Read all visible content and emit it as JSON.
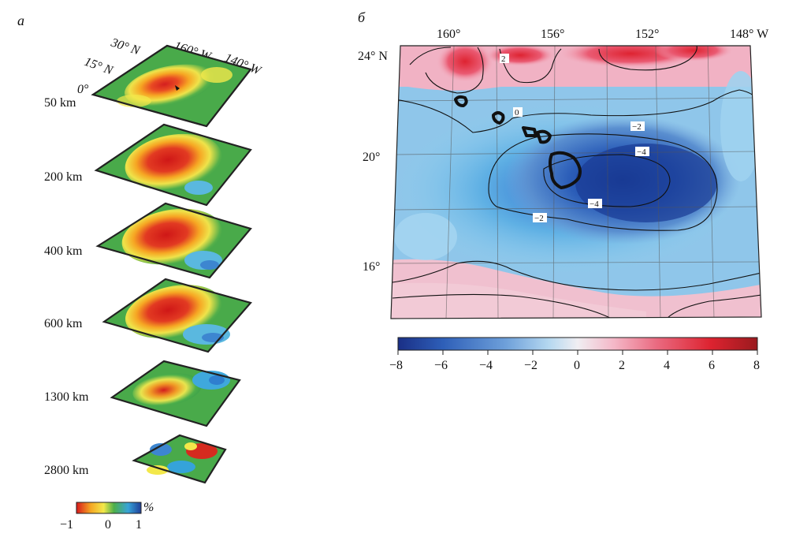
{
  "panel_a": {
    "letter": "а",
    "lon_labels": [
      "160° W",
      "140° W"
    ],
    "lat_labels": [
      "30° N",
      "15° N",
      "0°"
    ],
    "slices": [
      {
        "depth": "50 km"
      },
      {
        "depth": "200 km"
      },
      {
        "depth": "400 km"
      },
      {
        "depth": "600 km"
      },
      {
        "depth": "1300 km"
      },
      {
        "depth": "2800 km"
      }
    ],
    "colorbar": {
      "unit": "%",
      "ticks": [
        "−1",
        "0",
        "1"
      ],
      "colors": [
        "#d7191c",
        "#f5a623",
        "#f3e84a",
        "#4daf4a",
        "#37a3d8",
        "#1f3f99"
      ]
    }
  },
  "panel_b": {
    "letter": "б",
    "lon_labels": [
      "160°",
      "156°",
      "152°",
      "148° W"
    ],
    "lat_labels": [
      "24° N",
      "20°",
      "16°"
    ],
    "contour_labels": [
      "2",
      "0",
      "−2",
      "−4",
      "−4",
      "−2"
    ],
    "colorbar": {
      "ticks": [
        "−8",
        "−6",
        "−4",
        "−2",
        "0",
        "2",
        "4",
        "6",
        "8"
      ],
      "colors": [
        "#1a2f86",
        "#2e5fb8",
        "#6ea0da",
        "#b5d8f0",
        "#f0eef2",
        "#f4b8c8",
        "#ea6a80",
        "#dd2330",
        "#9a1a1e"
      ]
    }
  }
}
